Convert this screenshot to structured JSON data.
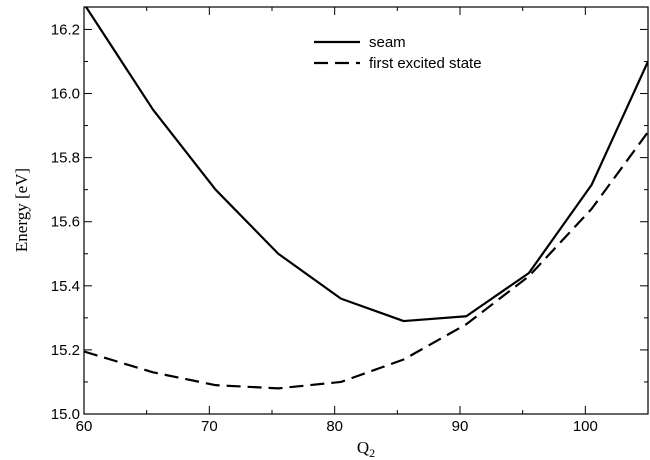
{
  "chart_data": {
    "type": "line",
    "xlabel": "Q",
    "xlabel_subscript": "2",
    "ylabel": "Energy [eV]",
    "xlim": [
      60,
      105
    ],
    "ylim": [
      15.0,
      16.27
    ],
    "x_ticks": [
      60,
      70,
      80,
      90,
      100
    ],
    "y_ticks": [
      15.0,
      15.2,
      15.4,
      15.6,
      15.8,
      16.0,
      16.2
    ],
    "x_tick_labels": [
      "60",
      "70",
      "80",
      "90",
      "100"
    ],
    "y_tick_labels": [
      "15.0",
      "15.2",
      "15.4",
      "15.6",
      "15.8",
      "16.0",
      "16.2"
    ],
    "grid": false,
    "legend_position": "top-center",
    "series": [
      {
        "name": "seam",
        "style": "solid",
        "x": [
          60,
          65.5,
          70.5,
          75.5,
          80.5,
          85.5,
          90.5,
          95.5,
          100.5,
          105
        ],
        "y": [
          16.28,
          15.95,
          15.7,
          15.5,
          15.36,
          15.29,
          15.305,
          15.44,
          15.715,
          16.1
        ]
      },
      {
        "name": "first excited state",
        "style": "dashed",
        "x": [
          60,
          65.5,
          70.5,
          75.5,
          80.5,
          85.5,
          90.5,
          95.5,
          100.5,
          105
        ],
        "y": [
          15.195,
          15.13,
          15.09,
          15.08,
          15.1,
          15.17,
          15.28,
          15.43,
          15.64,
          15.88
        ]
      }
    ]
  }
}
